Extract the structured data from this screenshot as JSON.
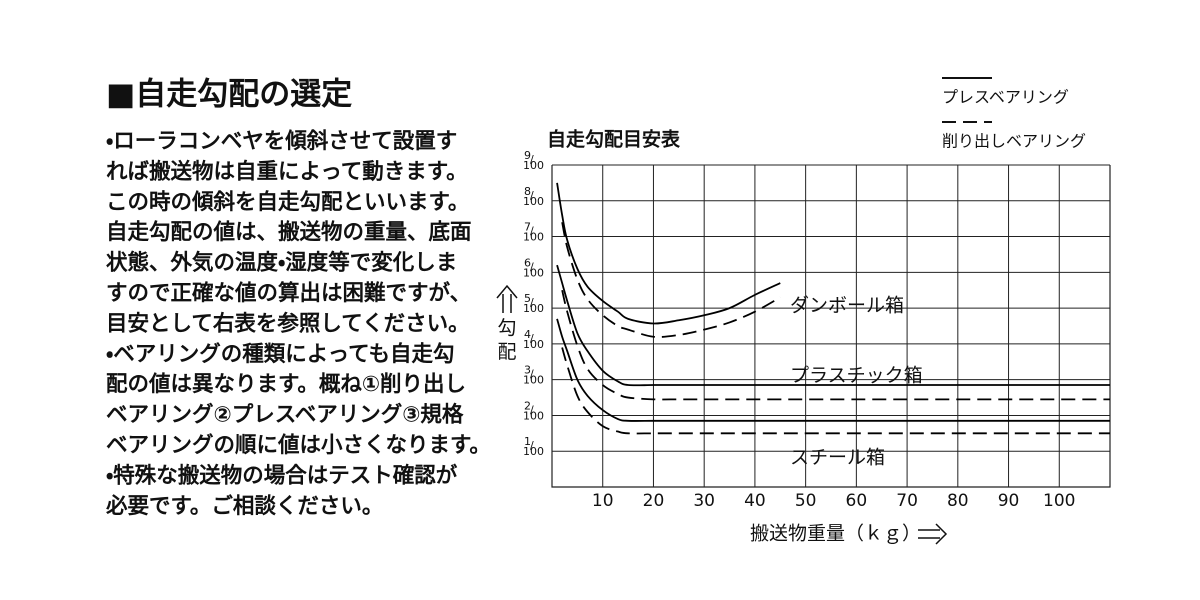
{
  "document": {
    "title": "■自走勾配の選定",
    "lines": [
      "・ローラコンベヤを傾斜させて設置す",
      "れば搬送物は自重によって動きます。",
      "この時の傾斜を自走勾配といいます。",
      "自走勾配の値は、搬送物の重量、底面",
      "状態、外気の温度・湿度等で変化しま",
      "すので正確な値の算出は困難ですが、",
      "目安として右表を参照してください。",
      "・ベアリングの種類によっても自走勾",
      "配の値は異なります。概ね①削り出し",
      "ベアリング②プレスベアリング③規格",
      "ベアリングの順に値は小さくなります。",
      "・特殊な搬送物の場合はテスト確認が",
      "必要です。ご相談ください。"
    ]
  },
  "chart_data": {
    "type": "line",
    "title": "自走勾配目安表",
    "x_label": "搬送物重量（ｋｇ）",
    "y_label": "勾配",
    "x": [
      1,
      2,
      3,
      5,
      7,
      10,
      13,
      15,
      20,
      25,
      30,
      35,
      40,
      45,
      50,
      60,
      70,
      80,
      90,
      100,
      110
    ],
    "xlim": [
      0,
      110
    ],
    "xticks": [
      10,
      20,
      30,
      40,
      50,
      60,
      70,
      80,
      90,
      100
    ],
    "ylim": [
      0,
      9
    ],
    "yticks": [
      {
        "value": 1,
        "label": "1/100"
      },
      {
        "value": 2,
        "label": "2/100"
      },
      {
        "value": 3,
        "label": "3/100"
      },
      {
        "value": 4,
        "label": "4/100"
      },
      {
        "value": 5,
        "label": "5/100"
      },
      {
        "value": 6,
        "label": "6/100"
      },
      {
        "value": 7,
        "label": "7/100"
      },
      {
        "value": 8,
        "label": "8/100"
      },
      {
        "value": 9,
        "label": "9/100"
      }
    ],
    "grid": true,
    "legend": [
      {
        "name": "プレスベアリング",
        "dash": "solid"
      },
      {
        "name": "削り出しベアリング",
        "dash": "dashed"
      }
    ],
    "series": [
      {
        "name": "ダンボール箱",
        "color": "#000000",
        "lines": [
          {
            "dash": "solid",
            "values": [
              8.5,
              7.6,
              6.9,
              6.1,
              5.6,
              5.2,
              4.9,
              4.7,
              4.57,
              4.66,
              4.8,
              5.0,
              5.37,
              5.7,
              null,
              null,
              null,
              null,
              null,
              null,
              null
            ]
          },
          {
            "dash": "dashed",
            "values": [
              null,
              7.4,
              6.7,
              5.8,
              5.25,
              4.8,
              4.5,
              4.4,
              4.2,
              4.25,
              4.4,
              4.6,
              4.9,
              5.3,
              null,
              null,
              null,
              null,
              null,
              null,
              null
            ]
          }
        ]
      },
      {
        "name": "プラスチック箱",
        "color": "#000000",
        "lines": [
          {
            "dash": "solid",
            "values": [
              6.2,
              5.7,
              5.2,
              4.3,
              3.8,
              3.25,
              2.95,
              2.85,
              2.85,
              2.85,
              2.85,
              2.85,
              2.85,
              2.85,
              2.85,
              2.85,
              2.85,
              2.85,
              2.85,
              2.85,
              2.85
            ]
          },
          {
            "dash": "dashed",
            "values": [
              null,
              5.5,
              4.9,
              3.95,
              3.3,
              2.85,
              2.6,
              2.5,
              2.45,
              2.45,
              2.45,
              2.45,
              2.45,
              2.45,
              2.45,
              2.45,
              2.45,
              2.45,
              2.45,
              2.45,
              2.45
            ]
          }
        ]
      },
      {
        "name": "スチール箱",
        "color": "#000000",
        "lines": [
          {
            "dash": "solid",
            "values": [
              4.7,
              4.2,
              3.8,
              3.0,
              2.55,
              2.15,
              1.9,
              1.85,
              1.85,
              1.85,
              1.85,
              1.85,
              1.85,
              1.85,
              1.85,
              1.85,
              1.85,
              1.85,
              1.85,
              1.85,
              1.85
            ]
          },
          {
            "dash": "dashed",
            "values": [
              null,
              3.9,
              3.4,
              2.55,
              2.1,
              1.7,
              1.55,
              1.5,
              1.5,
              1.5,
              1.5,
              1.5,
              1.5,
              1.5,
              1.5,
              1.5,
              1.5,
              1.5,
              1.5,
              1.5,
              1.5
            ]
          }
        ]
      }
    ]
  }
}
